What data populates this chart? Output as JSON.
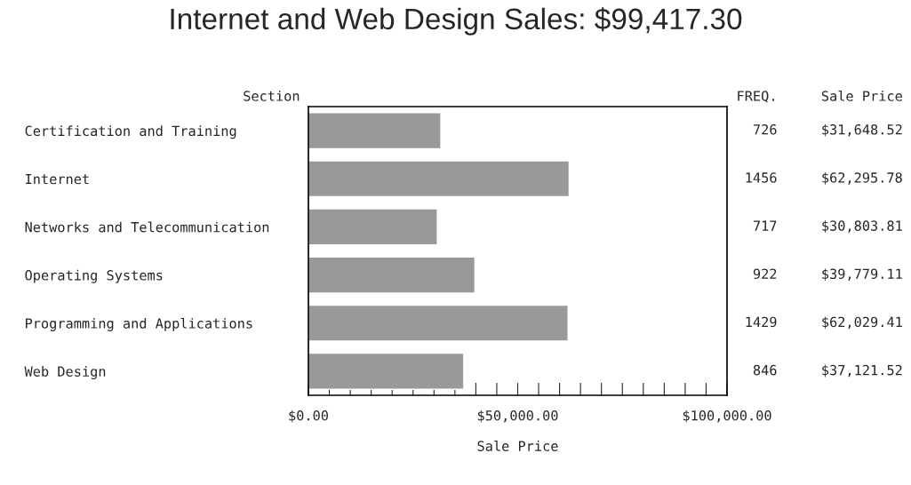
{
  "chart_data": {
    "type": "bar",
    "orientation": "horizontal",
    "title": "Internet and Web Design Sales: $99,417.30",
    "ylabel": "Section",
    "xlabel": "Sale Price",
    "categories": [
      "Certification and Training",
      "Internet",
      "Networks and Telecommunication",
      "Operating Systems",
      "Programming and Applications",
      "Web Design"
    ],
    "values": [
      31648.52,
      62295.78,
      30803.81,
      39779.11,
      62029.41,
      37121.52
    ],
    "value_labels": [
      "$31,648.52",
      "$62,295.78",
      "$30,803.81",
      "$39,779.11",
      "$62,029.41",
      "$37,121.52"
    ],
    "color": "#999999",
    "xlim": [
      0,
      100000
    ],
    "xticks": [
      {
        "value": 0,
        "label": "$0.00"
      },
      {
        "value": 5000,
        "label": null
      },
      {
        "value": 10000,
        "label": null
      },
      {
        "value": 15000,
        "label": null
      },
      {
        "value": 20000,
        "label": null
      },
      {
        "value": 25000,
        "label": null
      },
      {
        "value": 30000,
        "label": null
      },
      {
        "value": 35000,
        "label": null
      },
      {
        "value": 40000,
        "label": null
      },
      {
        "value": 45000,
        "label": null
      },
      {
        "value": 50000,
        "label": "$50,000.00"
      },
      {
        "value": 55000,
        "label": null
      },
      {
        "value": 60000,
        "label": null
      },
      {
        "value": 65000,
        "label": null
      },
      {
        "value": 70000,
        "label": null
      },
      {
        "value": 75000,
        "label": null
      },
      {
        "value": 80000,
        "label": null
      },
      {
        "value": 85000,
        "label": null
      },
      {
        "value": 90000,
        "label": null
      },
      {
        "value": 95000,
        "label": null
      },
      {
        "value": 100000,
        "label": "$100,000.00"
      }
    ],
    "grid": false,
    "annotations": [
      "FREQ.",
      "Sale Price",
      "726",
      "1456",
      "717",
      "922",
      "1429",
      "846"
    ]
  }
}
